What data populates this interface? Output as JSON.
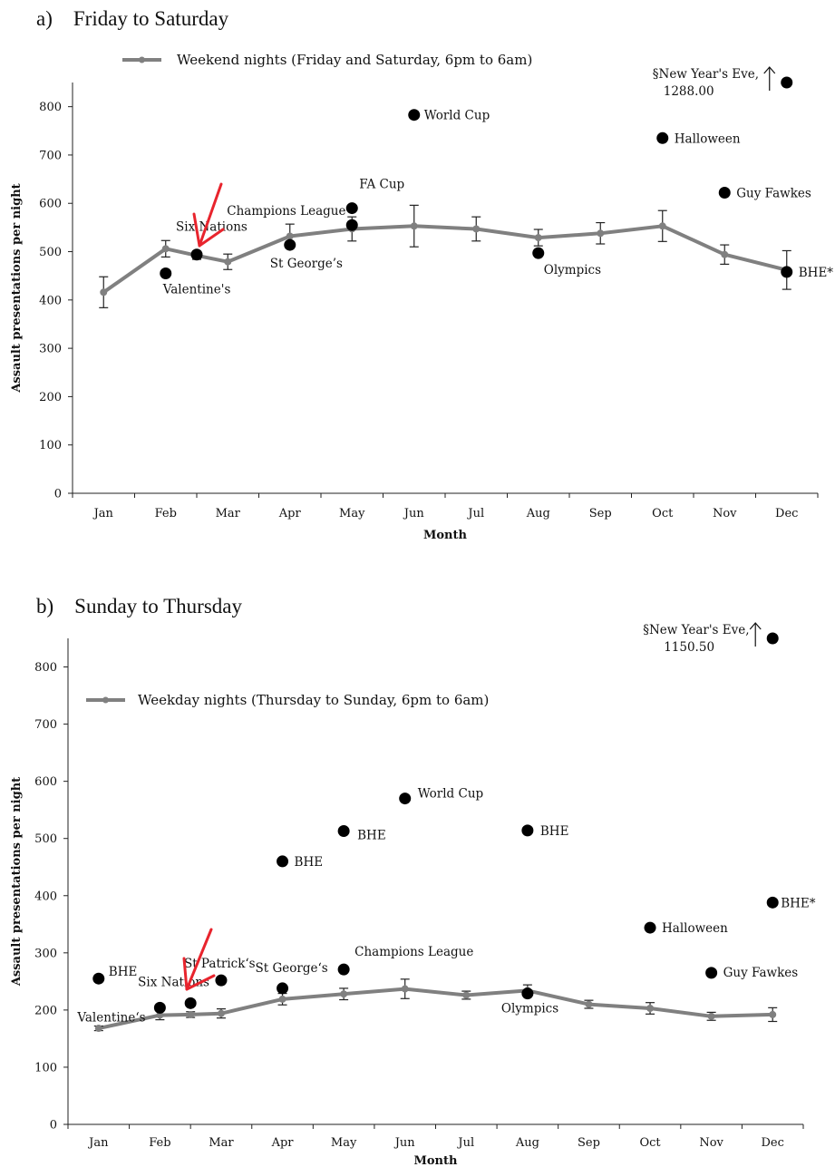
{
  "chart_data": [
    {
      "panel_title": "a) Friday to Saturday",
      "type": "line",
      "xlabel": "Month",
      "ylabel": "Assault presentations per night",
      "ylim": [
        0,
        850
      ],
      "yticks": [
        0,
        100,
        200,
        300,
        400,
        500,
        600,
        700,
        800
      ],
      "categories": [
        "Jan",
        "Feb",
        "Mar",
        "Apr",
        "May",
        "Jun",
        "Jul",
        "Aug",
        "Sep",
        "Oct",
        "Nov",
        "Dec"
      ],
      "series": [
        {
          "name": "Weekend nights (Friday and Saturday, 6pm to 6am)",
          "color": "#808080",
          "x": [
            1,
            2,
            2.5,
            3,
            4,
            5,
            6,
            7,
            8,
            9,
            10,
            11,
            12
          ],
          "values": [
            416,
            506,
            492,
            479,
            532,
            547,
            553,
            547,
            529,
            538,
            553,
            494,
            462
          ],
          "err": [
            32,
            17,
            8,
            16,
            25,
            25,
            43,
            25,
            17,
            22,
            32,
            20,
            40
          ]
        }
      ],
      "events": [
        {
          "label": "Valentine's",
          "x": 2,
          "y": 455
        },
        {
          "label": "Six Nations",
          "x": 2.5,
          "y": 494
        },
        {
          "label": "St George’s",
          "x": 4,
          "y": 514
        },
        {
          "label": "Champions League",
          "x": 5,
          "y": 555
        },
        {
          "label": "FA Cup",
          "x": 5,
          "y": 590
        },
        {
          "label": "World Cup",
          "x": 6,
          "y": 783
        },
        {
          "label": "Olympics",
          "x": 8,
          "y": 497
        },
        {
          "label": "Halloween",
          "x": 10,
          "y": 735
        },
        {
          "label": "Guy Fawkes",
          "x": 11,
          "y": 622
        },
        {
          "label": "BHE*",
          "x": 12,
          "y": 458
        },
        {
          "label": "§New Year's Eve,",
          "label2": "1288.00",
          "x": 12,
          "y": 850
        }
      ]
    },
    {
      "panel_title": "b) Sunday to Thursday",
      "type": "line",
      "xlabel": "Month",
      "ylabel": "Assault presentations per night",
      "ylim": [
        0,
        850
      ],
      "yticks": [
        0,
        100,
        200,
        300,
        400,
        500,
        600,
        700,
        800
      ],
      "categories": [
        "Jan",
        "Feb",
        "Mar",
        "Apr",
        "May",
        "Jun",
        "Jul",
        "Aug",
        "Sep",
        "Oct",
        "Nov",
        "Dec"
      ],
      "series": [
        {
          "name": "Weekday nights (Thursday to Sunday, 6pm to 6am)",
          "color": "#808080",
          "x": [
            1,
            2,
            2.5,
            3,
            4,
            5,
            6,
            7,
            8,
            9,
            10,
            11,
            12
          ],
          "values": [
            168,
            191,
            192,
            194,
            219,
            228,
            237,
            226,
            234,
            210,
            203,
            189,
            192
          ],
          "err": [
            4,
            8,
            5,
            8,
            10,
            10,
            17,
            7,
            10,
            7,
            10,
            7,
            12
          ]
        }
      ],
      "events": [
        {
          "label": "BHE",
          "x": 1,
          "y": 255
        },
        {
          "label": "Valentine‘s",
          "x": 2,
          "y": 204
        },
        {
          "label": "Six Nations",
          "x": 2.5,
          "y": 212
        },
        {
          "label": "St Patrick‘s",
          "x": 3,
          "y": 252
        },
        {
          "label": "BHE",
          "x": 4,
          "y": 460
        },
        {
          "label": "St George‘s",
          "x": 4,
          "y": 238
        },
        {
          "label": "BHE",
          "x": 5,
          "y": 513
        },
        {
          "label": "Champions League",
          "x": 5,
          "y": 271
        },
        {
          "label": "World Cup",
          "x": 6,
          "y": 570
        },
        {
          "label": "BHE",
          "x": 8,
          "y": 514
        },
        {
          "label": "Olympics",
          "x": 8,
          "y": 229
        },
        {
          "label": "Halloween",
          "x": 10,
          "y": 344
        },
        {
          "label": "Guy Fawkes",
          "x": 11,
          "y": 265
        },
        {
          "label": "BHE*",
          "x": 12,
          "y": 388
        },
        {
          "label": "§New Year's Eve,",
          "label2": "1150.50",
          "x": 12,
          "y": 850
        }
      ]
    }
  ]
}
